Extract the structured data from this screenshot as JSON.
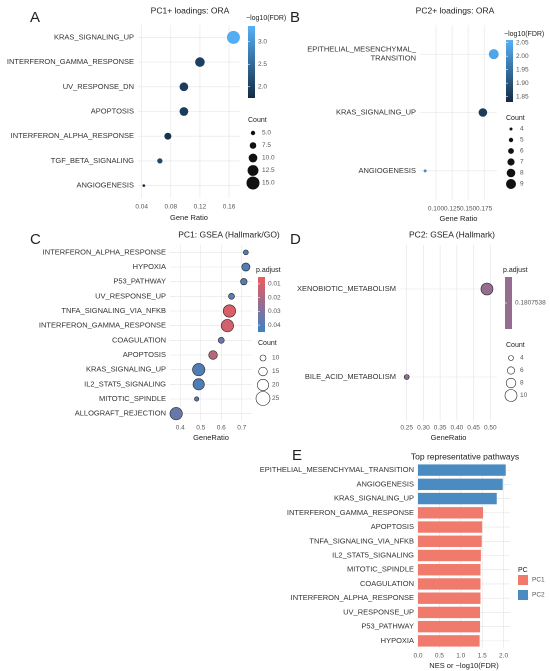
{
  "chart_data": [
    {
      "type": "dot",
      "panel": "A",
      "title": "PC1+ loadings: ORA",
      "categories": [
        "KRAS_SIGNALING_UP",
        "INTERFERON_GAMMA_RESPONSE",
        "UV_RESPONSE_DN",
        "APOPTOSIS",
        "INTERFERON_ALPHA_RESPONSE",
        "TGF_BETA_SIGNALING",
        "ANGIOGENESIS"
      ],
      "values": [
        0.166,
        0.12,
        0.098,
        0.098,
        0.076,
        0.065,
        0.043
      ],
      "color_values": [
        3.3,
        2.0,
        1.95,
        1.95,
        1.85,
        2.1,
        1.8
      ],
      "sizes": [
        15,
        11,
        10,
        10,
        8,
        6,
        3
      ],
      "xlabel": "Gene Ratio",
      "xlim": [
        0.035,
        0.175
      ],
      "xticks": [
        0.04,
        0.08,
        0.12,
        0.16
      ],
      "grid": true,
      "outline": false,
      "color_scale": {
        "title": "−log10(FDR)",
        "lim": [
          1.75,
          3.35
        ],
        "ticks": [
          {
            "value": 2.0,
            "label": "2.0"
          },
          2.5,
          {
            "value": 3.0,
            "label": "3.0"
          }
        ],
        "low_color": "#132B43",
        "high_color": "#56B1F7",
        "reverse": false
      },
      "size_scale": {
        "title": "Count",
        "values": [
          {
            "value": 5.0,
            "label": "5.0"
          },
          7.5,
          {
            "value": 10.0,
            "label": "10.0"
          },
          12.5,
          {
            "value": 15.0,
            "label": "15.0"
          }
        ]
      }
    },
    {
      "type": "dot",
      "panel": "B",
      "title": "PC2+ loadings: ORA",
      "categories": [
        "EPITHELIAL_MESENCHYMAL_\nTRANSITION",
        "KRAS_SIGNALING_UP",
        "ANGIOGENESIS"
      ],
      "values": [
        0.19,
        0.173,
        0.083
      ],
      "color_values": [
        2.04,
        1.86,
        2.0
      ],
      "sizes": [
        9,
        8,
        4
      ],
      "xlabel": "Gene Ratio",
      "xlim": [
        0.075,
        0.195
      ],
      "xticks": [
        {
          "value": 0.1,
          "label": "0.100"
        },
        0.125,
        {
          "value": 0.15,
          "label": "0.150"
        },
        0.175
      ],
      "grid": true,
      "outline": false,
      "color_scale": {
        "title": "−log10(FDR)",
        "lim": [
          1.83,
          2.06
        ],
        "ticks": [
          2.05,
          {
            "value": 2.0,
            "label": "2.00"
          },
          1.95,
          {
            "value": 1.9,
            "label": "1.90"
          },
          1.85
        ],
        "low_color": "#132B43",
        "high_color": "#56B1F7",
        "reverse": false
      },
      "size_scale": {
        "title": "Count",
        "values": [
          4,
          5,
          6,
          7,
          8,
          9
        ]
      }
    },
    {
      "type": "dot",
      "panel": "C",
      "title": "PC1: GSEA (Hallmark/GO)",
      "categories": [
        "INTERFERON_ALPHA_RESPONSE",
        "HYPOXIA",
        "P53_PATHWAY",
        "UV_RESPONSE_UP",
        "TNFA_SIGNALING_VIA_NFKB",
        "INTERFERON_GAMMA_RESPONSE",
        "COAGULATION",
        "APOPTOSIS",
        "KRAS_SIGNALING_UP",
        "IL2_STAT5_SIGNALING",
        "MITOTIC_SPINDLE",
        "ALLOGRAFT_REJECTION"
      ],
      "values": [
        0.72,
        0.72,
        0.71,
        0.65,
        0.64,
        0.63,
        0.6,
        0.56,
        0.49,
        0.49,
        0.48,
        0.38
      ],
      "color_values": [
        0.04,
        0.04,
        0.04,
        0.038,
        0.01,
        0.012,
        0.035,
        0.018,
        0.04,
        0.04,
        0.04,
        0.035
      ],
      "sizes": [
        8,
        14,
        11,
        10,
        22,
        22,
        10,
        15,
        22,
        20,
        7,
        22
      ],
      "xlabel": "GeneRatio",
      "xlim": [
        0.35,
        0.75
      ],
      "xticks": [
        0.4,
        0.5,
        0.6,
        0.7
      ],
      "grid": true,
      "outline": true,
      "color_scale": {
        "title": "p.adjust",
        "lim": [
          0.005,
          0.045
        ],
        "ticks": [
          0.01,
          0.02,
          0.03,
          0.04
        ],
        "low_color": "#ef5a5a",
        "high_color": "#3b82c4",
        "reverse": true
      },
      "size_scale": {
        "title": "Count",
        "values": [
          10,
          15,
          20,
          25
        ]
      }
    },
    {
      "type": "dot",
      "panel": "D",
      "title": "PC2: GSEA (Hallmark)",
      "categories": [
        "XENOBIOTIC_METABOLISM",
        "BILE_ACID_METABOLISM"
      ],
      "values": [
        0.49,
        0.25
      ],
      "color_values": [
        0.1807538,
        0.1807538
      ],
      "sizes": [
        10,
        4
      ],
      "xlabel": "GeneRatio",
      "xlim": [
        0.23,
        0.52
      ],
      "xticks": [
        0.25,
        {
          "value": 0.3,
          "label": "0.30"
        },
        0.35,
        {
          "value": 0.4,
          "label": "0.40"
        },
        0.45,
        {
          "value": 0.5,
          "label": "0.50"
        }
      ],
      "grid": true,
      "outline": true,
      "color_scale": {
        "title": "p.adjust",
        "lim": [
          0.1807538,
          0.1807538
        ],
        "ticks": [
          0.1807538
        ],
        "low_color": "#ef5a5a",
        "high_color": "#3b82c4",
        "reverse": true
      },
      "size_scale": {
        "title": "Count",
        "values": [
          4,
          6,
          8,
          10
        ]
      }
    },
    {
      "type": "hbar",
      "panel": "E",
      "title": "Top representative pathways",
      "categories": [
        "EPITHELIAL_MESENCHYMAL_TRANSITION",
        "ANGIOGENESIS",
        "KRAS_SIGNALING_UP",
        "INTERFERON_GAMMA_RESPONSE",
        "APOPTOSIS",
        "TNFA_SIGNALING_VIA_NFKB",
        "IL2_STAT5_SIGNALING",
        "MITOTIC_SPINDLE",
        "COAGULATION",
        "INTERFERON_ALPHA_RESPONSE",
        "UV_RESPONSE_UP",
        "P53_PATHWAY",
        "HYPOXIA"
      ],
      "series": [
        {
          "name": "PC1",
          "color": "#f07a6c",
          "values": [
            null,
            null,
            null,
            1.52,
            1.5,
            1.49,
            1.47,
            1.46,
            1.46,
            1.46,
            1.45,
            1.45,
            1.44
          ]
        },
        {
          "name": "PC2",
          "color": "#4a8cc2",
          "values": [
            2.05,
            1.98,
            1.84,
            null,
            null,
            null,
            null,
            null,
            null,
            null,
            null,
            null,
            null
          ]
        }
      ],
      "legend_title": "PC",
      "xlabel": "NES or −log10(FDR)",
      "xlim": [
        0,
        2.15
      ],
      "xticks": [
        {
          "value": 0,
          "label": "0.0"
        },
        0.5,
        {
          "value": 1,
          "label": "1.0"
        },
        1.5,
        {
          "value": 2,
          "label": "2.0"
        }
      ],
      "grid": true
    }
  ]
}
